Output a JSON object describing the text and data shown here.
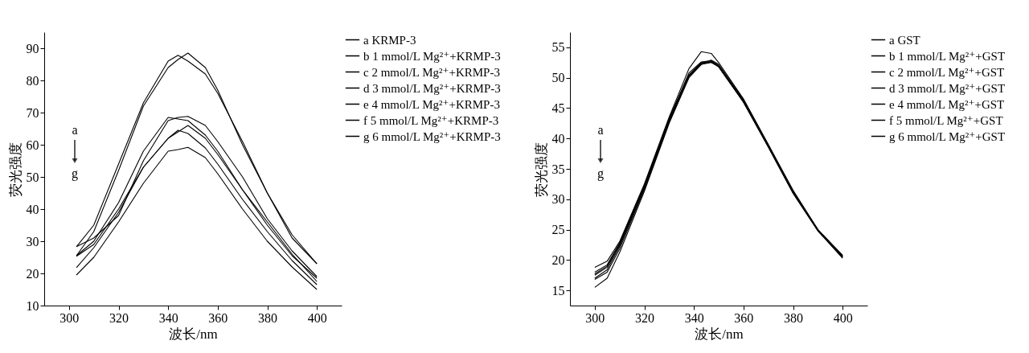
{
  "chart_data": [
    {
      "type": "line",
      "xlabel": "波长/nm",
      "ylabel": "荧光强度",
      "xlim": [
        290,
        410
      ],
      "xticks": [
        300,
        320,
        340,
        360,
        380,
        400
      ],
      "ylim": [
        10,
        95
      ],
      "yticks": [
        10,
        20,
        30,
        40,
        50,
        60,
        70,
        80,
        90
      ],
      "legend": "top right",
      "annotations": [
        "a",
        "g"
      ],
      "x": [
        303,
        310,
        320,
        330,
        340,
        344,
        348,
        355,
        360,
        370,
        380,
        390,
        400
      ],
      "series": [
        {
          "name": "a KRMP-3",
          "color": "#000000",
          "values": [
            25.5,
            33,
            52,
            72,
            84,
            86.5,
            88.5,
            84,
            77,
            60,
            45,
            32,
            23
          ]
        },
        {
          "name": "b 1 mmol/L Mg²⁺+KRMP-3",
          "color": "#000000",
          "values": [
            28.3,
            35,
            54,
            73,
            86,
            87.8,
            86,
            82,
            76,
            61,
            45,
            31,
            23
          ]
        },
        {
          "name": "c 2 mmol/L Mg²⁺+KRMP-3",
          "color": "#000000",
          "values": [
            28.3,
            31,
            38,
            55,
            67.5,
            68.5,
            68.8,
            66,
            61,
            50,
            37,
            27,
            19
          ]
        },
        {
          "name": "d 3 mmol/L Mg²⁺+KRMP-3",
          "color": "#000000",
          "values": [
            25.5,
            30,
            42,
            58,
            68.5,
            68,
            67.5,
            63,
            58,
            46,
            35,
            25.5,
            18.5
          ]
        },
        {
          "name": "e 4 mmol/L Mg²⁺+KRMP-3",
          "color": "#000000",
          "values": [
            25.3,
            29,
            40,
            53,
            62,
            64,
            66,
            62,
            57,
            46,
            36,
            26,
            17.5
          ]
        },
        {
          "name": "f 5 mmol/L Mg²⁺+KRMP-3",
          "color": "#000000",
          "values": [
            21.8,
            28,
            39,
            53,
            62,
            64.5,
            63.5,
            59,
            54,
            43,
            33,
            24,
            16.5
          ]
        },
        {
          "name": "g 6 mmol/L Mg²⁺+KRMP-3",
          "color": "#000000",
          "values": [
            19.5,
            25,
            36,
            48,
            58,
            58.5,
            59.2,
            56,
            51,
            40,
            30,
            22,
            15
          ]
        }
      ]
    },
    {
      "type": "line",
      "xlabel": "波长/nm",
      "ylabel": "荧光强度",
      "xlim": [
        290,
        410
      ],
      "xticks": [
        300,
        320,
        340,
        360,
        380,
        400
      ],
      "ylim": [
        12.5,
        57.5
      ],
      "yticks": [
        15,
        20,
        25,
        30,
        35,
        40,
        45,
        50,
        55
      ],
      "legend": "top right",
      "annotations": [
        "a",
        "g"
      ],
      "x": [
        300,
        305,
        310,
        320,
        330,
        338,
        343,
        347,
        350,
        360,
        370,
        380,
        390,
        400
      ],
      "series": [
        {
          "name": "a GST",
          "color": "#000000",
          "values": [
            18.8,
            19.8,
            23,
            32.5,
            43.5,
            51.5,
            54.3,
            54,
            52.5,
            46.5,
            39,
            31.5,
            25,
            20.8
          ]
        },
        {
          "name": "b 1 mmol/L Mg²⁺+GST",
          "color": "#000000",
          "values": [
            18,
            19.2,
            22.8,
            32.3,
            43.3,
            50.5,
            52.5,
            52.6,
            51.8,
            46,
            38.8,
            31.2,
            25,
            20.6
          ]
        },
        {
          "name": "c 2 mmol/L Mg²⁺+GST",
          "color": "#000000",
          "values": [
            17.7,
            19,
            22.6,
            32.2,
            43.2,
            50.8,
            52.6,
            52.8,
            52,
            46.2,
            38.9,
            31.3,
            25,
            20.7
          ]
        },
        {
          "name": "d 3 mmol/L Mg²⁺+GST",
          "color": "#000000",
          "values": [
            17.5,
            18.8,
            22.4,
            32,
            43,
            50.4,
            52.3,
            52.7,
            51.9,
            46,
            38.6,
            31,
            24.8,
            20.6
          ]
        },
        {
          "name": "e 4 mmol/L Mg²⁺+GST",
          "color": "#000000",
          "values": [
            17,
            18.4,
            22.2,
            31.8,
            42.8,
            50.3,
            52.4,
            52.9,
            52.2,
            46.4,
            39,
            31.3,
            25,
            20.5
          ]
        },
        {
          "name": "f 5 mmol/L Mg²⁺+GST",
          "color": "#000000",
          "values": [
            16.8,
            18,
            21.8,
            31.6,
            42.6,
            50.2,
            52.2,
            52.6,
            51.9,
            46.1,
            38.7,
            31.1,
            24.9,
            20.4
          ]
        },
        {
          "name": "g 6 mmol/L Mg²⁺+GST",
          "color": "#000000",
          "values": [
            15.5,
            17,
            21.2,
            31.3,
            42.5,
            50,
            52.2,
            52.5,
            51.8,
            46,
            38.6,
            31,
            24.8,
            20.3
          ]
        }
      ]
    }
  ]
}
